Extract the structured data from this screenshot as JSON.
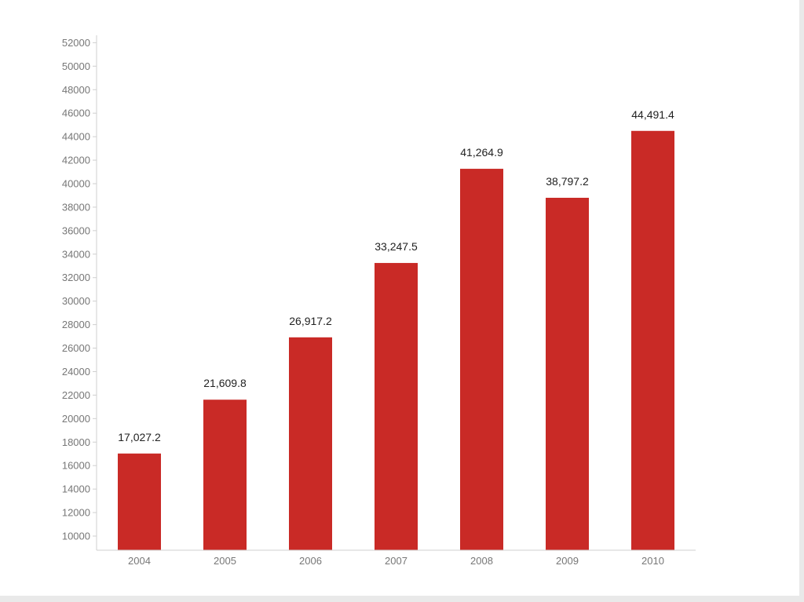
{
  "chart_data": {
    "type": "bar",
    "title": "",
    "xlabel": "",
    "ylabel": "",
    "categories": [
      "2004",
      "2005",
      "2006",
      "2007",
      "2008",
      "2009",
      "2010"
    ],
    "values": [
      17027.2,
      21609.8,
      26917.2,
      33247.5,
      41264.9,
      38797.2,
      44491.4
    ],
    "value_labels": [
      "17,027.2",
      "21,609.8",
      "26,917.2",
      "33,247.5",
      "41,264.9",
      "38,797.2",
      "44,491.4"
    ],
    "ylim": [
      8800,
      53000
    ],
    "yticks": [
      10000,
      12000,
      14000,
      16000,
      18000,
      20000,
      22000,
      24000,
      26000,
      28000,
      30000,
      32000,
      34000,
      36000,
      38000,
      40000,
      42000,
      44000,
      46000,
      48000,
      50000,
      52000
    ],
    "ytick_labels": [
      "10000",
      "12000",
      "14000",
      "16000",
      "18000",
      "20000",
      "22000",
      "24000",
      "26000",
      "28000",
      "30000",
      "32000",
      "34000",
      "36000",
      "38000",
      "40000",
      "42000",
      "44000",
      "46000",
      "48000",
      "50000",
      "52000"
    ],
    "grid": false,
    "legend": "none",
    "bar_color": "#c92a26",
    "axis_color": "#cfcfcf"
  }
}
